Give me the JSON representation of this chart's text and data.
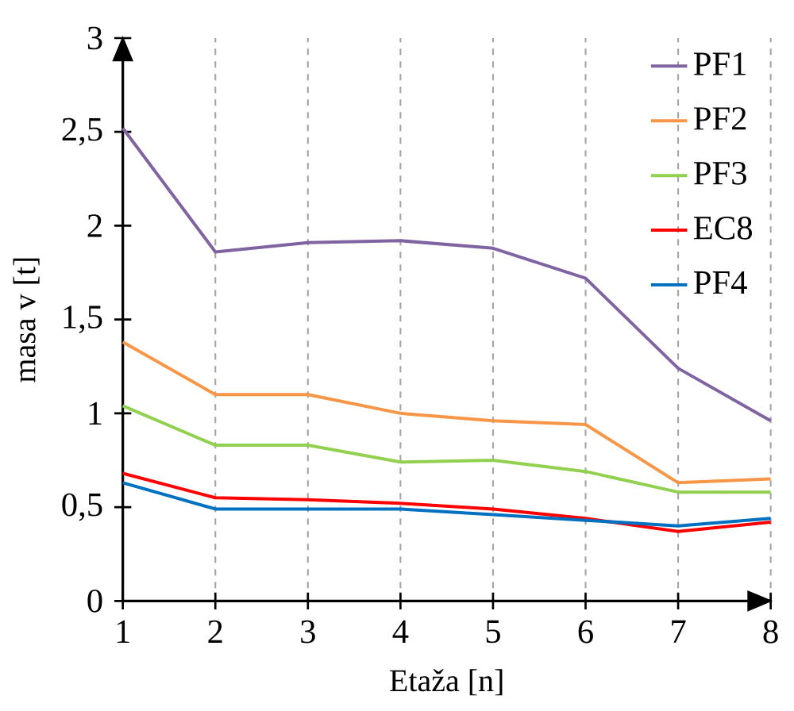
{
  "chart_data": {
    "type": "line",
    "xlabel": "Etaža [n]",
    "ylabel": "masa v [t]",
    "x": [
      1,
      2,
      3,
      4,
      5,
      6,
      7,
      8
    ],
    "series": [
      {
        "name": "PF1",
        "color": "#8064a2",
        "values": [
          2.52,
          1.86,
          1.91,
          1.92,
          1.88,
          1.72,
          1.24,
          0.96
        ]
      },
      {
        "name": "PF2",
        "color": "#f79646",
        "values": [
          1.38,
          1.1,
          1.1,
          1.0,
          0.96,
          0.94,
          0.63,
          0.65
        ]
      },
      {
        "name": "PF3",
        "color": "#92d050",
        "values": [
          1.04,
          0.83,
          0.83,
          0.74,
          0.75,
          0.69,
          0.58,
          0.58
        ]
      },
      {
        "name": "EC8",
        "color": "#ff0000",
        "values": [
          0.68,
          0.55,
          0.54,
          0.52,
          0.49,
          0.44,
          0.37,
          0.42
        ]
      },
      {
        "name": "PF4",
        "color": "#0070c0",
        "values": [
          0.63,
          0.49,
          0.49,
          0.49,
          0.46,
          0.43,
          0.4,
          0.44
        ]
      }
    ],
    "xlim": [
      1,
      8
    ],
    "xticks": [
      1,
      2,
      3,
      4,
      5,
      6,
      7,
      8
    ],
    "ylim": [
      0,
      3
    ],
    "yticks": [
      0,
      {
        "value": 0.5,
        "label": "0,5"
      },
      1,
      {
        "value": 1.5,
        "label": "1,5"
      },
      2,
      {
        "value": 2.5,
        "label": "2,5"
      },
      3
    ],
    "grid": "x",
    "legend": "top right",
    "marker": "none",
    "line_style": "solid"
  }
}
